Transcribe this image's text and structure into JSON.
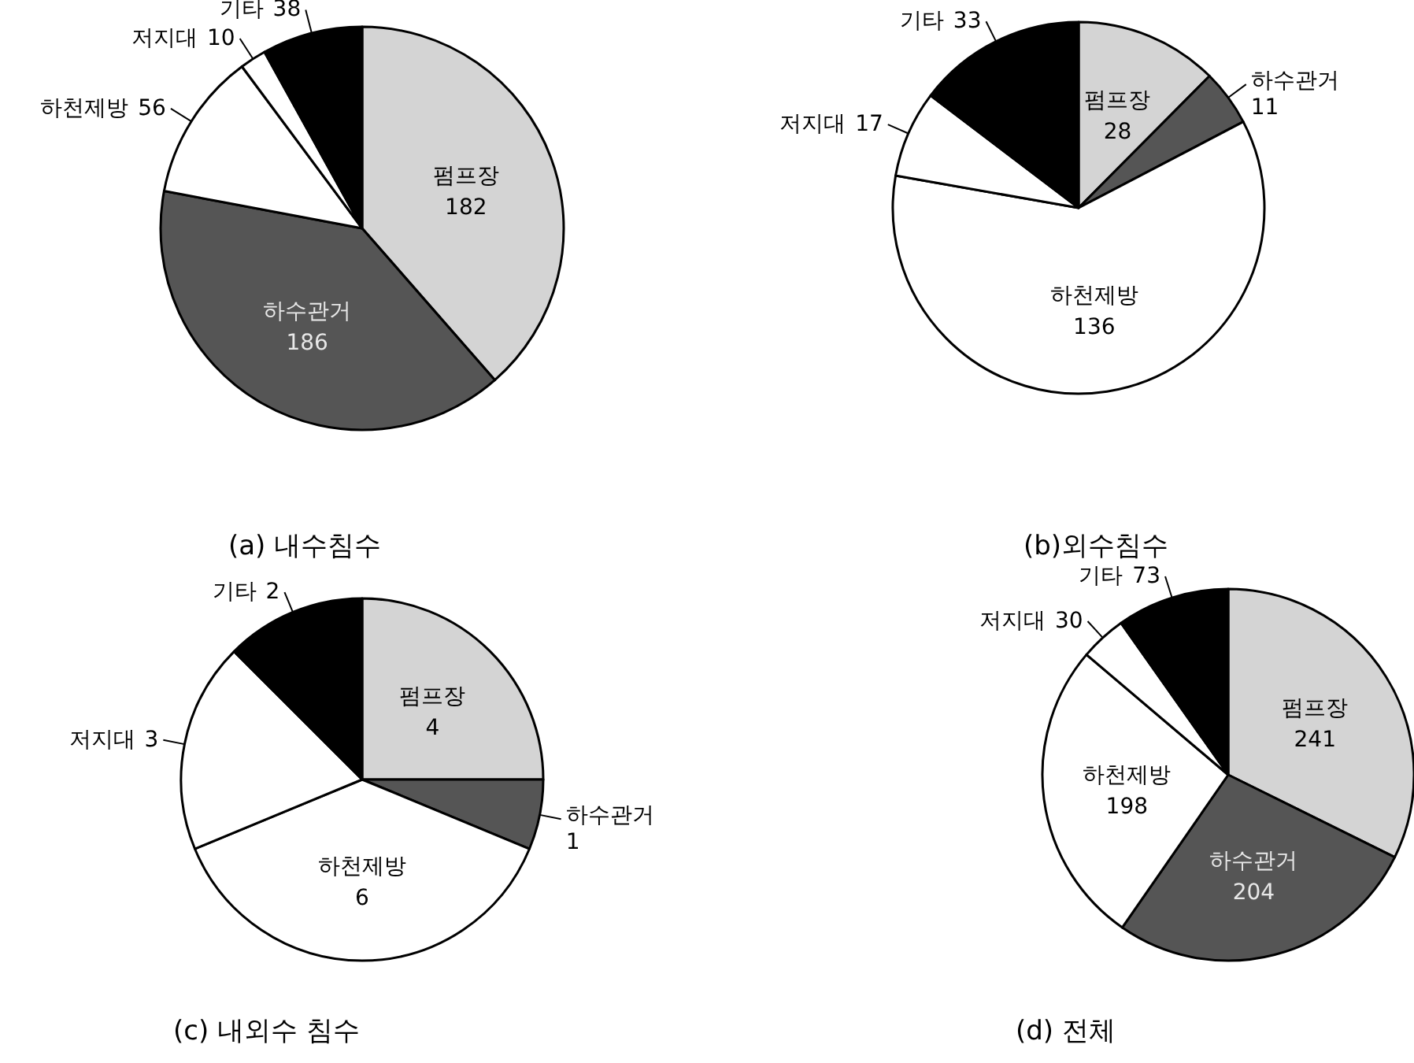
{
  "chart_data": [
    {
      "type": "pie",
      "title": "(a) 내수침수",
      "categories": [
        "펌프장",
        "하수관거",
        "하천제방",
        "저지대",
        "기타"
      ],
      "values": [
        182,
        186,
        56,
        10,
        38
      ],
      "colors": [
        "#d4d4d4",
        "#555555",
        "#ffffff",
        "#ffffff",
        "#000000"
      ],
      "data_labels": true
    },
    {
      "type": "pie",
      "title": "(b)외수침수",
      "categories": [
        "펌프장",
        "하수관거",
        "하천제방",
        "저지대",
        "기타"
      ],
      "values": [
        28,
        11,
        136,
        17,
        33
      ],
      "colors": [
        "#d4d4d4",
        "#555555",
        "#ffffff",
        "#ffffff",
        "#000000"
      ],
      "data_labels": true
    },
    {
      "type": "pie",
      "title": "(c) 내외수 침수",
      "categories": [
        "펌프장",
        "하수관거",
        "하천제방",
        "저지대",
        "기타"
      ],
      "values": [
        4,
        1,
        6,
        3,
        2
      ],
      "colors": [
        "#d4d4d4",
        "#555555",
        "#ffffff",
        "#ffffff",
        "#000000"
      ],
      "data_labels": true
    },
    {
      "type": "pie",
      "title": "(d) 전체",
      "categories": [
        "펌프장",
        "하수관거",
        "하천제방",
        "저지대",
        "기타"
      ],
      "values": [
        241,
        204,
        198,
        30,
        73
      ],
      "colors": [
        "#d4d4d4",
        "#555555",
        "#ffffff",
        "#ffffff",
        "#000000"
      ],
      "data_labels": true
    }
  ]
}
